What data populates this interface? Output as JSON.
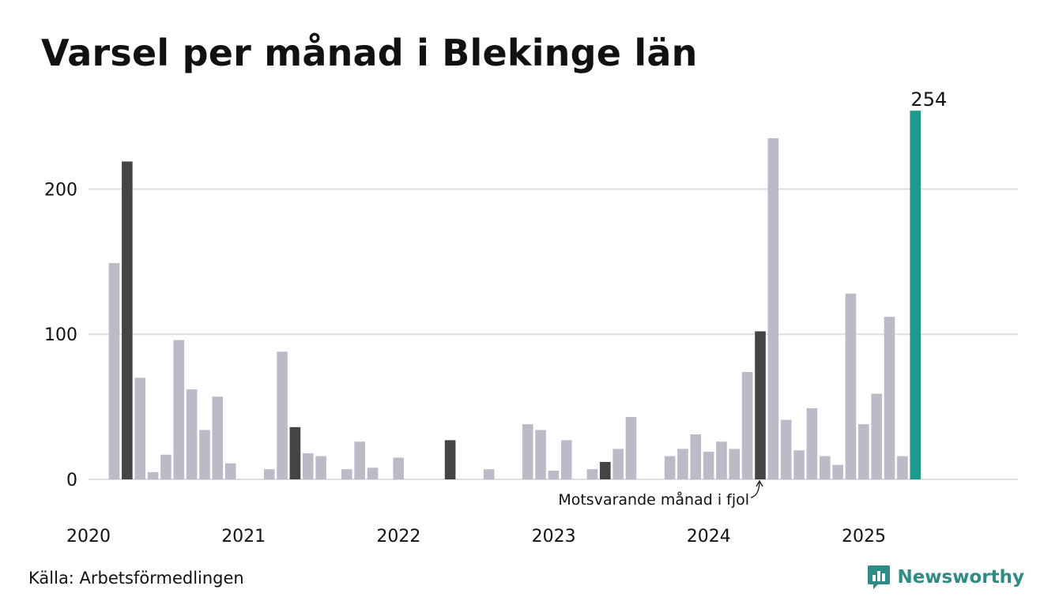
{
  "title": "Varsel per månad i Blekinge län",
  "source": "Källa: Arbetsförmedlingen",
  "brand": {
    "name": "Newsworthy",
    "icon": "newsworthy-logo-icon"
  },
  "colors": {
    "bar": "#bcbac8",
    "highlight": "#444444",
    "current": "#1a9b8c",
    "grid": "#dddddd",
    "brand": "#2d8c83"
  },
  "chart_data": {
    "type": "bar",
    "title": "Varsel per månad i Blekinge län",
    "ylim": [
      0,
      254
    ],
    "yticks": [
      0,
      100,
      200
    ],
    "xticks": [
      "2020",
      "2021",
      "2022",
      "2023",
      "2024",
      "2025"
    ],
    "grid": true,
    "value_label": "254",
    "annotation": "Motsvarande månad i fjol",
    "categories": [
      "2020-01",
      "2020-02",
      "2020-03",
      "2020-04",
      "2020-05",
      "2020-06",
      "2020-07",
      "2020-08",
      "2020-09",
      "2020-10",
      "2020-11",
      "2020-12",
      "2021-01",
      "2021-02",
      "2021-03",
      "2021-04",
      "2021-05",
      "2021-06",
      "2021-07",
      "2021-08",
      "2021-09",
      "2021-10",
      "2021-11",
      "2021-12",
      "2022-01",
      "2022-02",
      "2022-03",
      "2022-04",
      "2022-05",
      "2022-06",
      "2022-07",
      "2022-08",
      "2022-09",
      "2022-10",
      "2022-11",
      "2022-12",
      "2023-01",
      "2023-02",
      "2023-03",
      "2023-04",
      "2023-05",
      "2023-06",
      "2023-07",
      "2023-08",
      "2023-09",
      "2023-10",
      "2023-11",
      "2023-12",
      "2024-01",
      "2024-02",
      "2024-03",
      "2024-04",
      "2024-05",
      "2024-06",
      "2024-07",
      "2024-08",
      "2024-09",
      "2024-10",
      "2024-11",
      "2024-12",
      "2025-01",
      "2025-02",
      "2025-03",
      "2025-04"
    ],
    "values": [
      0,
      149,
      219,
      70,
      5,
      17,
      96,
      62,
      34,
      57,
      11,
      0,
      0,
      7,
      88,
      36,
      18,
      16,
      0,
      7,
      26,
      8,
      0,
      15,
      0,
      0,
      0,
      27,
      0,
      0,
      7,
      0,
      0,
      38,
      34,
      6,
      27,
      0,
      7,
      12,
      21,
      43,
      0,
      0,
      16,
      21,
      31,
      19,
      26,
      21,
      74,
      102,
      235,
      41,
      20,
      49,
      16,
      10,
      128,
      38,
      59,
      112,
      16,
      254
    ],
    "highlight": [
      "2020-03",
      "2021-04",
      "2022-04",
      "2023-04",
      "2024-04",
      "2025-04"
    ]
  }
}
